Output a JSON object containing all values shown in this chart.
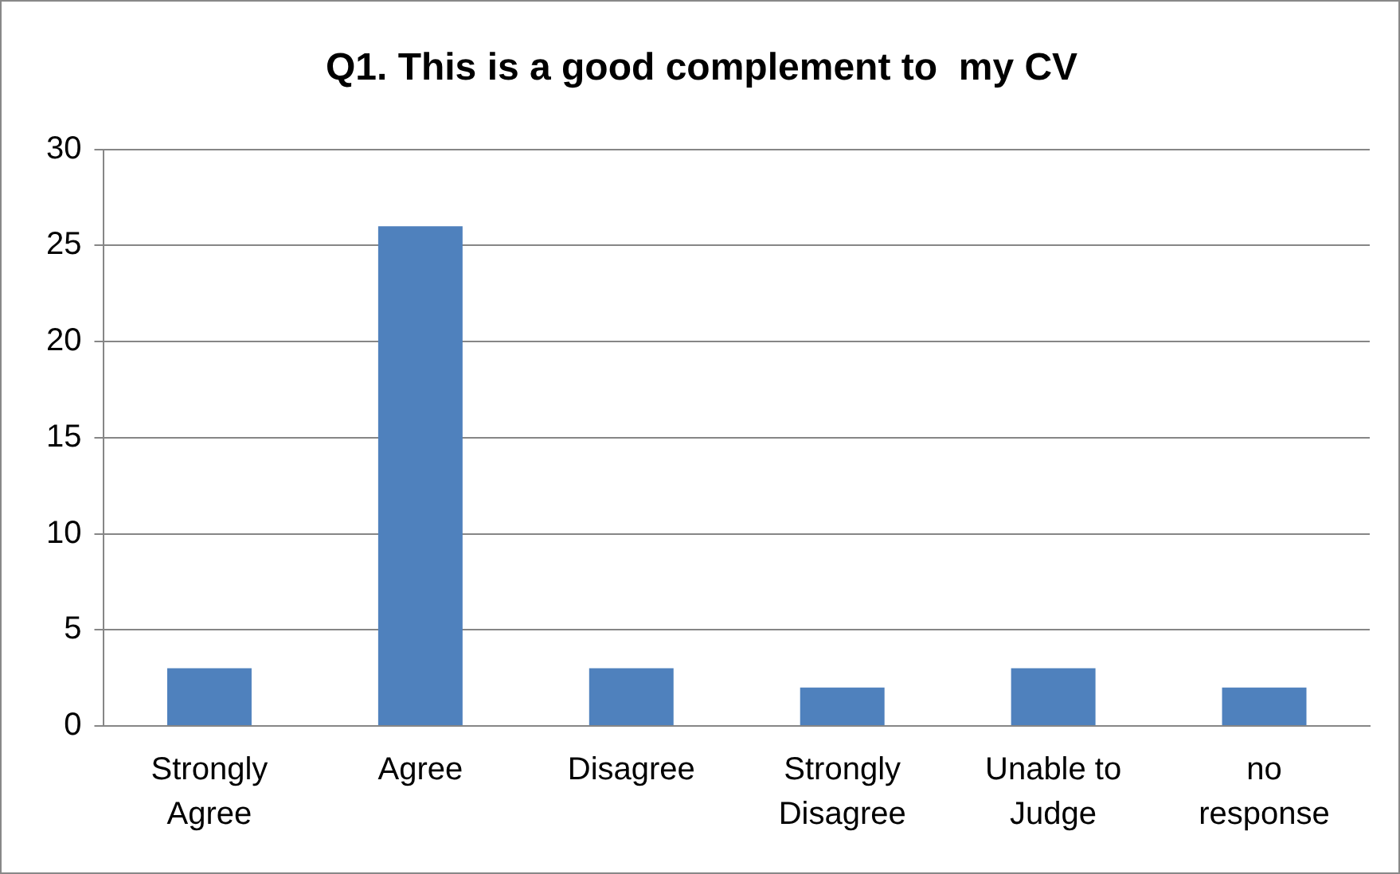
{
  "chart_data": {
    "type": "bar",
    "title": "Q1. This is a good complement to  my CV",
    "categories": [
      "Strongly Agree",
      "Agree",
      "Disagree",
      "Strongly Disagree",
      "Unable to Judge",
      "no response"
    ],
    "values": [
      3,
      26,
      3,
      2,
      3,
      2
    ],
    "color": "#4f81bd",
    "ylim": [
      0,
      30
    ],
    "yticks": [
      0,
      5,
      10,
      15,
      20,
      25,
      30
    ],
    "grid": "y",
    "legend": false
  }
}
